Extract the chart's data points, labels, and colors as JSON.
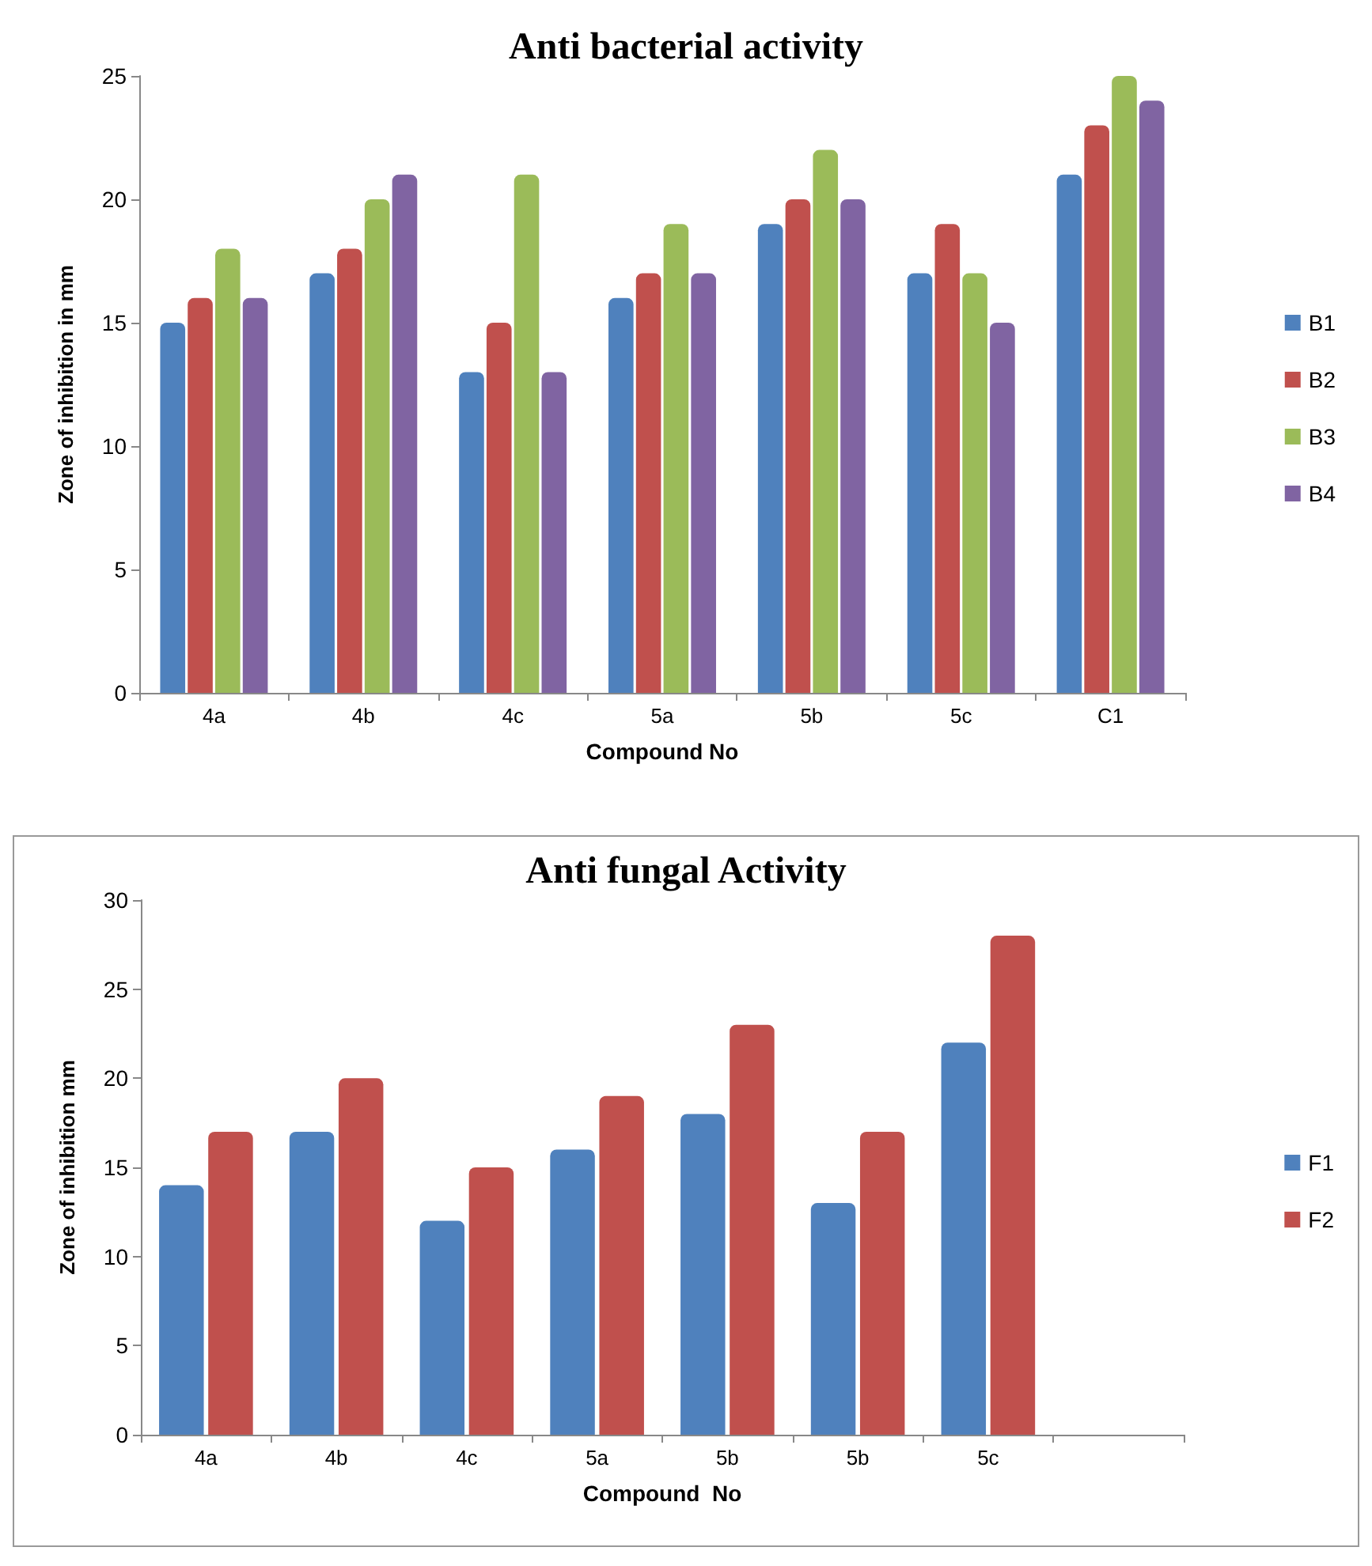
{
  "chart_data": [
    {
      "type": "bar",
      "title": "Anti bacterial activity",
      "xlabel": "Compound No",
      "ylabel": "Zone of inhibition in mm",
      "categories": [
        "4a",
        "4b",
        "4c",
        "5a",
        "5b",
        "5c",
        "C1"
      ],
      "series": [
        {
          "name": "B1",
          "color": "#4f81bd",
          "values": [
            15,
            17,
            13,
            16,
            19,
            17,
            21
          ]
        },
        {
          "name": "B2",
          "color": "#c0504d",
          "values": [
            16,
            18,
            15,
            17,
            20,
            19,
            23
          ]
        },
        {
          "name": "B3",
          "color": "#9bbb59",
          "values": [
            18,
            20,
            21,
            19,
            22,
            17,
            25
          ]
        },
        {
          "name": "B4",
          "color": "#8064a2",
          "values": [
            16,
            21,
            13,
            17,
            20,
            15,
            24
          ]
        }
      ],
      "ylim": [
        0,
        25
      ],
      "yticks": [
        0,
        5,
        10,
        15,
        20,
        25
      ],
      "grid": false,
      "legend": "right"
    },
    {
      "type": "bar",
      "title": "Anti fungal Activity",
      "xlabel": "Compound  No",
      "ylabel": "Zone of inhibition mm",
      "categories": [
        "4a",
        "4b",
        "4c",
        "5a",
        "5b",
        "5b",
        "5c",
        null
      ],
      "series": [
        {
          "name": "F1",
          "color": "#4f81bd",
          "values": [
            14,
            17,
            12,
            16,
            18,
            13,
            22,
            null
          ]
        },
        {
          "name": "F2",
          "color": "#c0504d",
          "values": [
            17,
            20,
            15,
            19,
            23,
            17,
            28,
            null
          ]
        }
      ],
      "ylim": [
        0,
        30
      ],
      "yticks": [
        0,
        5,
        10,
        15,
        20,
        25,
        30
      ],
      "grid": false,
      "legend": "right"
    }
  ]
}
